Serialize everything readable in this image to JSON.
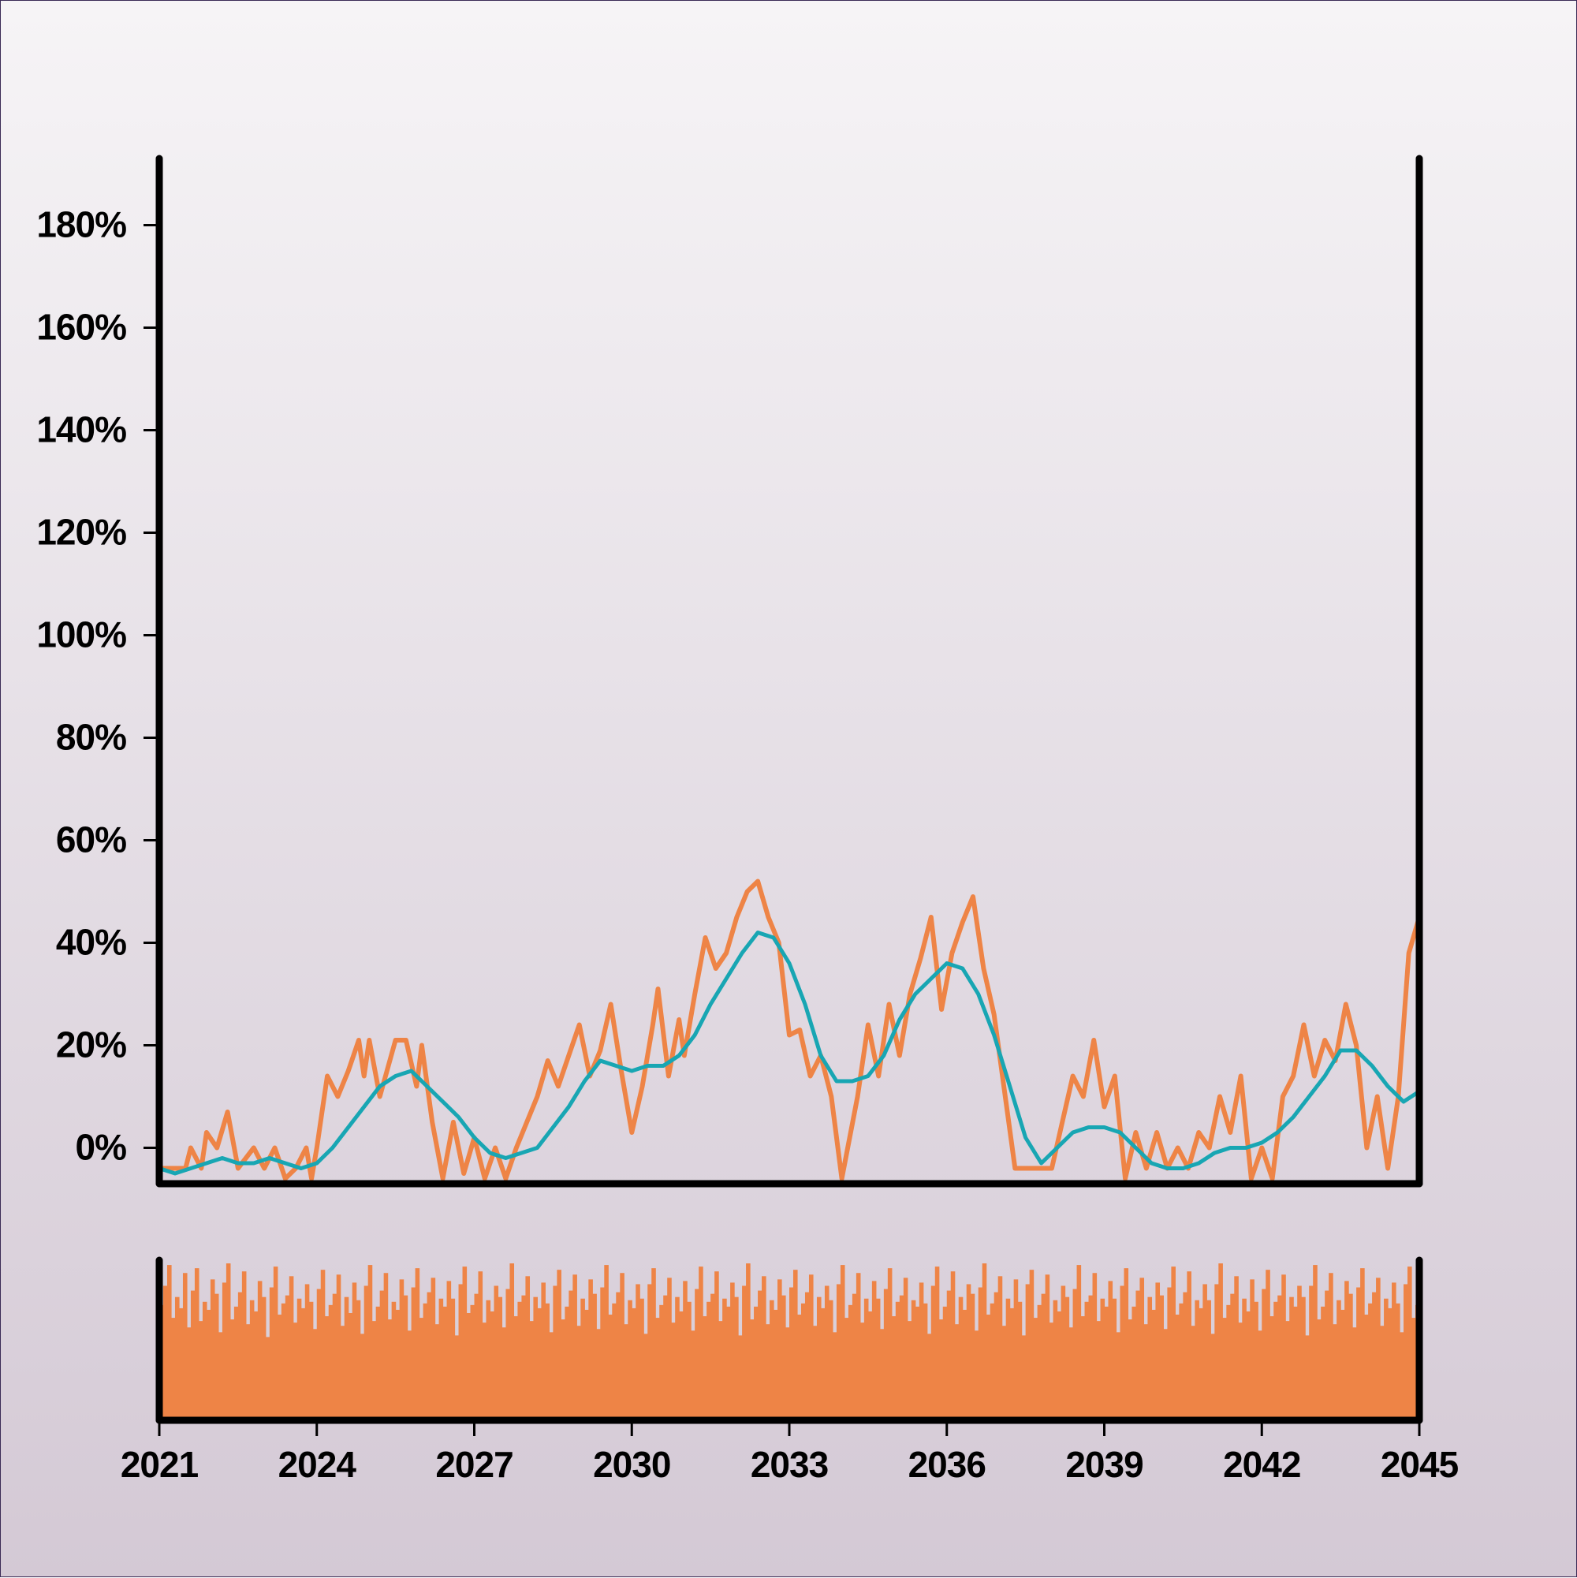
{
  "chart_data": {
    "type": "line",
    "title": "",
    "xlabel": "",
    "ylabel": "",
    "x_ticks": [
      "2021",
      "2024",
      "2027",
      "2030",
      "2033",
      "2036",
      "2039",
      "2042",
      "2045"
    ],
    "y_ticks": [
      "0%",
      "20%",
      "40%",
      "60%",
      "80%",
      "100%",
      "120%",
      "140%",
      "160%",
      "180%"
    ],
    "xlim": [
      2021.0,
      2045.0
    ],
    "ylim": [
      -7,
      193
    ],
    "grid": false,
    "legend": "none",
    "series": [
      {
        "color": "#ee8446",
        "points": [
          [
            2021.0,
            -4
          ],
          [
            2021.5,
            -4
          ],
          [
            2021.6,
            0
          ],
          [
            2021.8,
            -4
          ],
          [
            2021.9,
            3
          ],
          [
            2022.1,
            0
          ],
          [
            2022.3,
            7
          ],
          [
            2022.5,
            -4
          ],
          [
            2022.8,
            0
          ],
          [
            2023.0,
            -4
          ],
          [
            2023.2,
            0
          ],
          [
            2023.4,
            -6
          ],
          [
            2023.6,
            -4
          ],
          [
            2023.8,
            0
          ],
          [
            2023.9,
            -6
          ],
          [
            2024.0,
            0
          ],
          [
            2024.1,
            7
          ],
          [
            2024.2,
            14
          ],
          [
            2024.4,
            10
          ],
          [
            2024.6,
            15
          ],
          [
            2024.8,
            21
          ],
          [
            2024.9,
            14
          ],
          [
            2025.0,
            21
          ],
          [
            2025.2,
            10
          ],
          [
            2025.5,
            21
          ],
          [
            2025.7,
            21
          ],
          [
            2025.9,
            12
          ],
          [
            2026.0,
            20
          ],
          [
            2026.2,
            5
          ],
          [
            2026.4,
            -6
          ],
          [
            2026.6,
            5
          ],
          [
            2026.8,
            -5
          ],
          [
            2027.0,
            2
          ],
          [
            2027.2,
            -6
          ],
          [
            2027.4,
            0
          ],
          [
            2027.6,
            -6
          ],
          [
            2027.8,
            0
          ],
          [
            2028.0,
            5
          ],
          [
            2028.2,
            10
          ],
          [
            2028.4,
            17
          ],
          [
            2028.6,
            12
          ],
          [
            2028.8,
            18
          ],
          [
            2029.0,
            24
          ],
          [
            2029.2,
            14
          ],
          [
            2029.4,
            19
          ],
          [
            2029.6,
            28
          ],
          [
            2029.8,
            15
          ],
          [
            2030.0,
            3
          ],
          [
            2030.2,
            12
          ],
          [
            2030.4,
            24
          ],
          [
            2030.5,
            31
          ],
          [
            2030.7,
            14
          ],
          [
            2030.9,
            25
          ],
          [
            2031.0,
            18
          ],
          [
            2031.2,
            30
          ],
          [
            2031.4,
            41
          ],
          [
            2031.6,
            35
          ],
          [
            2031.8,
            38
          ],
          [
            2032.0,
            45
          ],
          [
            2032.2,
            50
          ],
          [
            2032.4,
            52
          ],
          [
            2032.6,
            45
          ],
          [
            2032.8,
            40
          ],
          [
            2033.0,
            22
          ],
          [
            2033.2,
            23
          ],
          [
            2033.4,
            14
          ],
          [
            2033.6,
            18
          ],
          [
            2033.8,
            10
          ],
          [
            2034.0,
            -6
          ],
          [
            2034.3,
            10
          ],
          [
            2034.5,
            24
          ],
          [
            2034.7,
            14
          ],
          [
            2034.9,
            28
          ],
          [
            2035.1,
            18
          ],
          [
            2035.3,
            30
          ],
          [
            2035.5,
            37
          ],
          [
            2035.7,
            45
          ],
          [
            2035.9,
            27
          ],
          [
            2036.1,
            38
          ],
          [
            2036.3,
            44
          ],
          [
            2036.5,
            49
          ],
          [
            2036.7,
            35
          ],
          [
            2036.9,
            26
          ],
          [
            2037.3,
            -4
          ],
          [
            2037.8,
            -4
          ],
          [
            2038.0,
            -4
          ],
          [
            2038.2,
            5
          ],
          [
            2038.4,
            14
          ],
          [
            2038.6,
            10
          ],
          [
            2038.8,
            21
          ],
          [
            2039.0,
            8
          ],
          [
            2039.2,
            14
          ],
          [
            2039.4,
            -6
          ],
          [
            2039.6,
            3
          ],
          [
            2039.8,
            -4
          ],
          [
            2040.0,
            3
          ],
          [
            2040.2,
            -4
          ],
          [
            2040.4,
            0
          ],
          [
            2040.6,
            -4
          ],
          [
            2040.8,
            3
          ],
          [
            2041.0,
            0
          ],
          [
            2041.2,
            10
          ],
          [
            2041.4,
            3
          ],
          [
            2041.6,
            14
          ],
          [
            2041.8,
            -6
          ],
          [
            2042.0,
            0
          ],
          [
            2042.2,
            -6
          ],
          [
            2042.4,
            10
          ],
          [
            2042.6,
            14
          ],
          [
            2042.8,
            24
          ],
          [
            2043.0,
            14
          ],
          [
            2043.2,
            21
          ],
          [
            2043.4,
            17
          ],
          [
            2043.6,
            28
          ],
          [
            2043.8,
            20
          ],
          [
            2044.0,
            0
          ],
          [
            2044.2,
            10
          ],
          [
            2044.4,
            -4
          ],
          [
            2044.6,
            10
          ],
          [
            2044.8,
            38
          ],
          [
            2045.0,
            45
          ]
        ]
      },
      {
        "color": "#18a6b3",
        "points": [
          [
            2021.0,
            -4
          ],
          [
            2021.3,
            -5
          ],
          [
            2021.6,
            -4
          ],
          [
            2021.9,
            -3
          ],
          [
            2022.2,
            -2
          ],
          [
            2022.5,
            -3
          ],
          [
            2022.8,
            -3
          ],
          [
            2023.1,
            -2
          ],
          [
            2023.4,
            -3
          ],
          [
            2023.7,
            -4
          ],
          [
            2024.0,
            -3
          ],
          [
            2024.3,
            0
          ],
          [
            2024.6,
            4
          ],
          [
            2024.9,
            8
          ],
          [
            2025.2,
            12
          ],
          [
            2025.5,
            14
          ],
          [
            2025.8,
            15
          ],
          [
            2026.1,
            12
          ],
          [
            2026.4,
            9
          ],
          [
            2026.7,
            6
          ],
          [
            2027.0,
            2
          ],
          [
            2027.3,
            -1
          ],
          [
            2027.6,
            -2
          ],
          [
            2027.9,
            -1
          ],
          [
            2028.2,
            0
          ],
          [
            2028.5,
            4
          ],
          [
            2028.8,
            8
          ],
          [
            2029.1,
            13
          ],
          [
            2029.4,
            17
          ],
          [
            2029.7,
            16
          ],
          [
            2030.0,
            15
          ],
          [
            2030.3,
            16
          ],
          [
            2030.6,
            16
          ],
          [
            2030.9,
            18
          ],
          [
            2031.2,
            22
          ],
          [
            2031.5,
            28
          ],
          [
            2031.8,
            33
          ],
          [
            2032.1,
            38
          ],
          [
            2032.4,
            42
          ],
          [
            2032.7,
            41
          ],
          [
            2033.0,
            36
          ],
          [
            2033.3,
            28
          ],
          [
            2033.6,
            18
          ],
          [
            2033.9,
            13
          ],
          [
            2034.2,
            13
          ],
          [
            2034.5,
            14
          ],
          [
            2034.8,
            18
          ],
          [
            2035.1,
            25
          ],
          [
            2035.4,
            30
          ],
          [
            2035.7,
            33
          ],
          [
            2036.0,
            36
          ],
          [
            2036.3,
            35
          ],
          [
            2036.6,
            30
          ],
          [
            2036.9,
            22
          ],
          [
            2037.2,
            12
          ],
          [
            2037.5,
            2
          ],
          [
            2037.8,
            -3
          ],
          [
            2038.1,
            0
          ],
          [
            2038.4,
            3
          ],
          [
            2038.7,
            4
          ],
          [
            2039.0,
            4
          ],
          [
            2039.3,
            3
          ],
          [
            2039.6,
            0
          ],
          [
            2039.9,
            -3
          ],
          [
            2040.2,
            -4
          ],
          [
            2040.5,
            -4
          ],
          [
            2040.8,
            -3
          ],
          [
            2041.1,
            -1
          ],
          [
            2041.4,
            0
          ],
          [
            2041.7,
            0
          ],
          [
            2042.0,
            1
          ],
          [
            2042.3,
            3
          ],
          [
            2042.6,
            6
          ],
          [
            2042.9,
            10
          ],
          [
            2043.2,
            14
          ],
          [
            2043.5,
            19
          ],
          [
            2043.8,
            19
          ],
          [
            2044.1,
            16
          ],
          [
            2044.4,
            12
          ],
          [
            2044.7,
            9
          ],
          [
            2045.0,
            11
          ]
        ]
      }
    ],
    "bar_panel": {
      "type": "bar",
      "color": "#ee8446",
      "bar_count": 320,
      "values": [
        0.72,
        0.84,
        0.97,
        0.64,
        0.77,
        0.7,
        0.92,
        0.58,
        0.81,
        0.95,
        0.62,
        0.74,
        0.69,
        0.88,
        0.79,
        0.55,
        0.86,
        0.98,
        0.63,
        0.71,
        0.8,
        0.93,
        0.6,
        0.75,
        0.68,
        0.87,
        0.77,
        0.52,
        0.83,
        0.96,
        0.66,
        0.73,
        0.78,
        0.9,
        0.61,
        0.76,
        0.7,
        0.85,
        0.74,
        0.57,
        0.82,
        0.94,
        0.65,
        0.72,
        0.79,
        0.91,
        0.59,
        0.77,
        0.67,
        0.86,
        0.75,
        0.54,
        0.84,
        0.97,
        0.62,
        0.71,
        0.81,
        0.92,
        0.63,
        0.74,
        0.69,
        0.88,
        0.78,
        0.56,
        0.83,
        0.95,
        0.64,
        0.73,
        0.8,
        0.89,
        0.6,
        0.76,
        0.71,
        0.87,
        0.76,
        0.53,
        0.85,
        0.96,
        0.67,
        0.72,
        0.79,
        0.93,
        0.61,
        0.75,
        0.68,
        0.84,
        0.77,
        0.58,
        0.82,
        0.98,
        0.65,
        0.74,
        0.78,
        0.9,
        0.62,
        0.77,
        0.7,
        0.86,
        0.73,
        0.55,
        0.84,
        0.94,
        0.63,
        0.71,
        0.81,
        0.91,
        0.59,
        0.76,
        0.69,
        0.88,
        0.79,
        0.57,
        0.83,
        0.97,
        0.66,
        0.73,
        0.8,
        0.92,
        0.6,
        0.75,
        0.7,
        0.85,
        0.76,
        0.54,
        0.85,
        0.95,
        0.64,
        0.72,
        0.78,
        0.89,
        0.61,
        0.77,
        0.68,
        0.87,
        0.74,
        0.56,
        0.82,
        0.96,
        0.65,
        0.74,
        0.79,
        0.93,
        0.62,
        0.76,
        0.71,
        0.86,
        0.77,
        0.53,
        0.84,
        0.98,
        0.63,
        0.71,
        0.81,
        0.9,
        0.6,
        0.75,
        0.69,
        0.88,
        0.78,
        0.58,
        0.83,
        0.94,
        0.66,
        0.73,
        0.8,
        0.91,
        0.59,
        0.77,
        0.7,
        0.84,
        0.75,
        0.55,
        0.85,
        0.97,
        0.64,
        0.72,
        0.79,
        0.92,
        0.61,
        0.76,
        0.68,
        0.87,
        0.76,
        0.57,
        0.82,
        0.95,
        0.65,
        0.74,
        0.78,
        0.89,
        0.62,
        0.75,
        0.71,
        0.86,
        0.73,
        0.54,
        0.84,
        0.96,
        0.63,
        0.71,
        0.81,
        0.93,
        0.6,
        0.77,
        0.69,
        0.85,
        0.79,
        0.56,
        0.83,
        0.98,
        0.66,
        0.73,
        0.8,
        0.9,
        0.59,
        0.76,
        0.7,
        0.88,
        0.74,
        0.53,
        0.85,
        0.94,
        0.64,
        0.72,
        0.79,
        0.91,
        0.61,
        0.75,
        0.68,
        0.84,
        0.77,
        0.58,
        0.82,
        0.97,
        0.65,
        0.74,
        0.78,
        0.92,
        0.62,
        0.76,
        0.71,
        0.87,
        0.76,
        0.55,
        0.84,
        0.95,
        0.63,
        0.71,
        0.81,
        0.89,
        0.6,
        0.77,
        0.69,
        0.86,
        0.78,
        0.57,
        0.83,
        0.96,
        0.66,
        0.73,
        0.8,
        0.93,
        0.59,
        0.75,
        0.7,
        0.85,
        0.75,
        0.54,
        0.85,
        0.98,
        0.64,
        0.72,
        0.79,
        0.9,
        0.61,
        0.76,
        0.68,
        0.88,
        0.74,
        0.56,
        0.82,
        0.94,
        0.65,
        0.74,
        0.78,
        0.91,
        0.62,
        0.77,
        0.71,
        0.84,
        0.77,
        0.53,
        0.84,
        0.97,
        0.63,
        0.71,
        0.81,
        0.92,
        0.6,
        0.75,
        0.69,
        0.87,
        0.79,
        0.58,
        0.83,
        0.95,
        0.66,
        0.73,
        0.8,
        0.89,
        0.59,
        0.76,
        0.7,
        0.86,
        0.73,
        0.55,
        0.85,
        0.96,
        0.64,
        0.72
      ]
    }
  }
}
